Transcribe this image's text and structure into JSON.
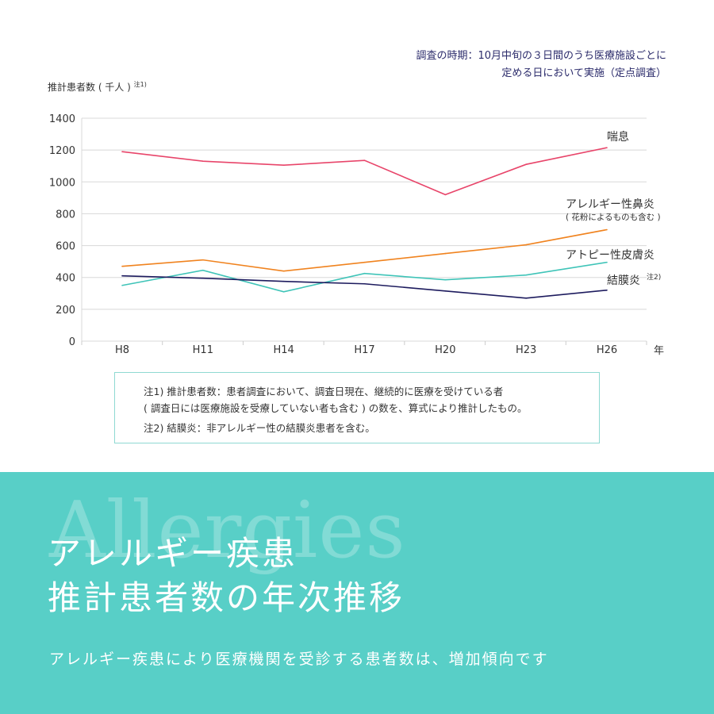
{
  "survey_note": {
    "line1": "調査の時期：10月中旬の３日間のうち医療施設ごとに",
    "line2": "定める日において実施（定点調査）"
  },
  "y_title": {
    "text": "推計患者数 ( 千人 )",
    "sup": "注1)"
  },
  "chart_data": {
    "type": "line",
    "xlabel": "年",
    "ylabel": "推計患者数 ( 千人 )",
    "categories": [
      "H8",
      "H11",
      "H14",
      "H17",
      "H20",
      "H23",
      "H26"
    ],
    "ylim": [
      0,
      1400
    ],
    "yticks": [
      0,
      200,
      400,
      600,
      800,
      1000,
      1200,
      1400
    ],
    "grid": true,
    "series": [
      {
        "name": "喘息",
        "color": "#e8456a",
        "values": [
          1190,
          1130,
          1105,
          1135,
          920,
          1110,
          1215
        ]
      },
      {
        "name": "アレルギー性鼻炎",
        "subname": "( 花粉によるものも含む )",
        "color": "#f0831f",
        "values": [
          470,
          510,
          440,
          495,
          550,
          605,
          700
        ]
      },
      {
        "name": "アトピー性皮膚炎",
        "color": "#3fc4b8",
        "values": [
          350,
          445,
          310,
          425,
          385,
          415,
          495
        ]
      },
      {
        "name": "結膜炎",
        "sup": "注2)",
        "color": "#1d1b5e",
        "values": [
          410,
          395,
          375,
          360,
          315,
          270,
          320
        ]
      }
    ]
  },
  "notes": {
    "n1_line1": "注1) 推計患者数：患者調査において、調査日現在、継続的に医療を受けている者",
    "n1_line2": "( 調査日には医療施設を受療していない者も含む ) の数を、算式により推計したもの。",
    "n2": "注2) 結膜炎：非アレルギー性の結膜炎患者を含む。"
  },
  "banner": {
    "watermark": "Allergies",
    "title_line1": "アレルギー疾患",
    "title_line2": "推計患者数の年次推移",
    "subtitle": "アレルギー疾患により医療機関を受診する患者数は、増加傾向です",
    "bg_color": "#58cfc7"
  }
}
